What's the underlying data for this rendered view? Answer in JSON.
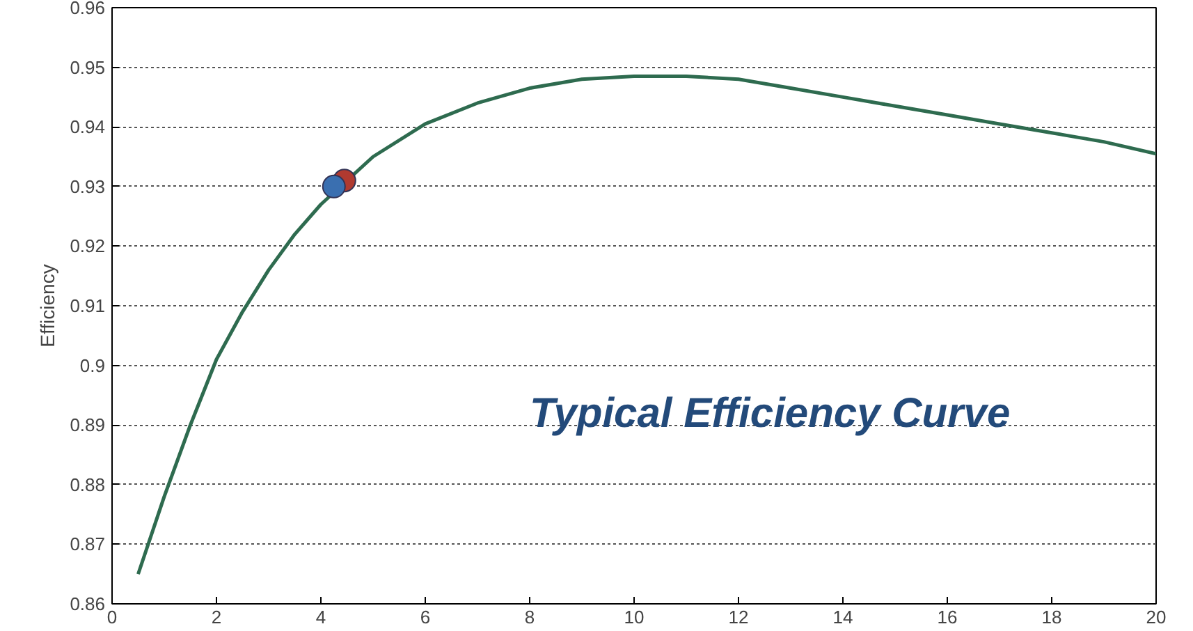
{
  "chart_data": {
    "type": "line",
    "ylabel": "Efficiency",
    "annotations": [
      "Typical Efficiency Curve"
    ],
    "xlim": [
      0,
      20
    ],
    "xticks": [
      0,
      2,
      4,
      6,
      8,
      10,
      12,
      14,
      16,
      18,
      20
    ],
    "ylim": [
      0.86,
      0.96
    ],
    "yticks": [
      0.86,
      0.87,
      0.88,
      0.89,
      0.9,
      0.91,
      0.92,
      0.93,
      0.94,
      0.95,
      0.96
    ],
    "grid": "y",
    "series": [
      {
        "color": "#2e6b4f",
        "x": [
          0.5,
          1,
          1.5,
          2,
          2.5,
          3,
          3.5,
          4,
          4.5,
          5,
          6,
          7,
          8,
          9,
          10,
          11,
          12,
          13,
          14,
          15,
          16,
          17,
          18,
          19,
          20
        ],
        "values": [
          0.865,
          0.878,
          0.89,
          0.901,
          0.909,
          0.916,
          0.922,
          0.927,
          0.931,
          0.935,
          0.9405,
          0.944,
          0.9465,
          0.948,
          0.9485,
          0.9485,
          0.948,
          0.9465,
          0.945,
          0.9435,
          0.942,
          0.9405,
          0.939,
          0.9375,
          0.9355
        ]
      },
      {
        "type": "scatter",
        "color": "#b03a30",
        "marker": "circle",
        "x": [
          4.45
        ],
        "values": [
          0.931
        ]
      },
      {
        "type": "scatter",
        "color": "#3a6fb0",
        "marker": "circle",
        "x": [
          4.25
        ],
        "values": [
          0.93
        ]
      }
    ]
  }
}
